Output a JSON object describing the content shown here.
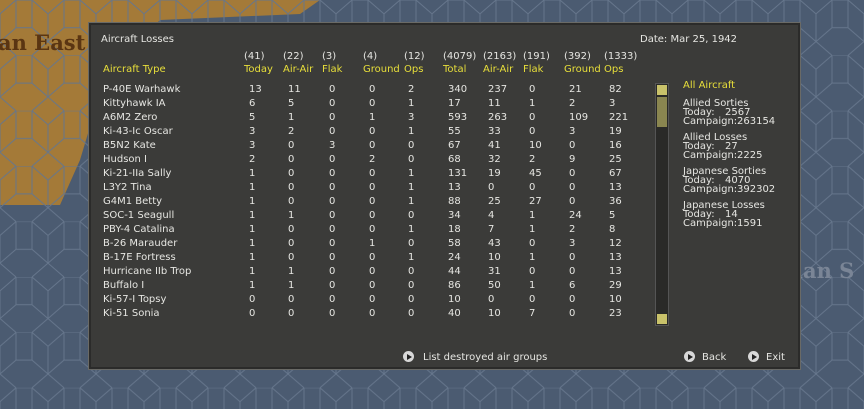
{
  "header": {
    "title": "Aircraft Losses",
    "date": "Date: Mar 25, 1942"
  },
  "map_labels": [
    "an East Afr",
    "ian S"
  ],
  "table": {
    "group_totals": [
      "(41)",
      "(22)",
      "(3)",
      "(4)",
      "(12)",
      "(4079)",
      "(2163)",
      "(191)",
      "(392)",
      "(1333)"
    ],
    "columns": [
      "Aircraft Type",
      "Today",
      "Air-Air",
      "Flak",
      "Ground",
      "Ops",
      "Total",
      "Air-Air",
      "Flak",
      "Ground",
      "Ops"
    ],
    "rows": [
      [
        "P-40E Warhawk",
        13,
        11,
        0,
        0,
        2,
        340,
        237,
        0,
        21,
        82
      ],
      [
        "Kittyhawk IA",
        6,
        5,
        0,
        0,
        1,
        17,
        11,
        1,
        2,
        3
      ],
      [
        "A6M2 Zero",
        5,
        1,
        0,
        1,
        3,
        593,
        263,
        0,
        109,
        221
      ],
      [
        "Ki-43-Ic Oscar",
        3,
        2,
        0,
        0,
        1,
        55,
        33,
        0,
        3,
        19
      ],
      [
        "B5N2 Kate",
        3,
        0,
        3,
        0,
        0,
        67,
        41,
        10,
        0,
        16
      ],
      [
        "Hudson I",
        2,
        0,
        0,
        2,
        0,
        68,
        32,
        2,
        9,
        25
      ],
      [
        "Ki-21-IIa Sally",
        1,
        0,
        0,
        0,
        1,
        131,
        19,
        45,
        0,
        67
      ],
      [
        "L3Y2 Tina",
        1,
        0,
        0,
        0,
        1,
        13,
        0,
        0,
        0,
        13
      ],
      [
        "G4M1 Betty",
        1,
        0,
        0,
        0,
        1,
        88,
        25,
        27,
        0,
        36
      ],
      [
        "SOC-1 Seagull",
        1,
        1,
        0,
        0,
        0,
        34,
        4,
        1,
        24,
        5
      ],
      [
        "PBY-4 Catalina",
        1,
        0,
        0,
        0,
        1,
        18,
        7,
        1,
        2,
        8
      ],
      [
        "B-26 Marauder",
        1,
        0,
        0,
        1,
        0,
        58,
        43,
        0,
        3,
        12
      ],
      [
        "B-17E Fortress",
        1,
        0,
        0,
        0,
        1,
        24,
        10,
        1,
        0,
        13
      ],
      [
        "Hurricane IIb Trop",
        1,
        1,
        0,
        0,
        0,
        44,
        31,
        0,
        0,
        13
      ],
      [
        "Buffalo I",
        1,
        1,
        0,
        0,
        0,
        86,
        50,
        1,
        6,
        29
      ],
      [
        "Ki-57-I Topsy",
        0,
        0,
        0,
        0,
        0,
        10,
        0,
        0,
        0,
        10
      ],
      [
        "Ki-51 Sonia",
        0,
        0,
        0,
        0,
        0,
        40,
        10,
        7,
        0,
        23
      ]
    ]
  },
  "sidebar": {
    "title": "All Aircraft",
    "today_label": "Today:",
    "campaign_label": "Campaign:",
    "stats": [
      {
        "title": "Allied Sorties",
        "today": 2567,
        "campaign": 263154
      },
      {
        "title": "Allied Losses",
        "today": 27,
        "campaign": 2225
      },
      {
        "title": "Japanese Sorties",
        "today": 4070,
        "campaign": 392302
      },
      {
        "title": "Japanese Losses",
        "today": 14,
        "campaign": 1591
      }
    ]
  },
  "buttons": [
    "List destroyed air groups",
    "Back",
    "Exit"
  ]
}
